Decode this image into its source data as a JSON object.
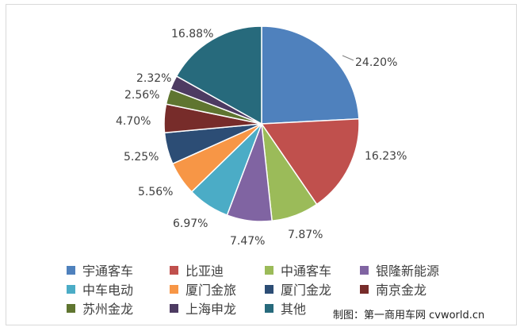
{
  "chart_data": {
    "type": "pie",
    "title": "",
    "unit": "%",
    "slices": [
      {
        "name": "宇通客车",
        "value": 24.2,
        "label": "24.20%",
        "color": "#4F81BD"
      },
      {
        "name": "比亚迪",
        "value": 16.23,
        "label": "16.23%",
        "color": "#C0504D"
      },
      {
        "name": "中通客车",
        "value": 7.87,
        "label": "7.87%",
        "color": "#9BBB59"
      },
      {
        "name": "银隆新能源",
        "value": 7.47,
        "label": "7.47%",
        "color": "#8064A2"
      },
      {
        "name": "中车电动",
        "value": 6.97,
        "label": "6.97%",
        "color": "#4BACC6"
      },
      {
        "name": "厦门金旅",
        "value": 5.56,
        "label": "5.56%",
        "color": "#F79646"
      },
      {
        "name": "厦门金龙",
        "value": 5.25,
        "label": "5.25%",
        "color": "#2C4D75"
      },
      {
        "name": "南京金龙",
        "value": 4.7,
        "label": "4.70%",
        "color": "#772C2A"
      },
      {
        "name": "苏州金龙",
        "value": 2.56,
        "label": "2.56%",
        "color": "#5F7530"
      },
      {
        "name": "上海申龙",
        "value": 2.32,
        "label": "2.32%",
        "color": "#4D3B62"
      },
      {
        "name": "其他",
        "value": 16.88,
        "label": "16.88%",
        "color": "#276A7C"
      }
    ],
    "legend_position": "bottom"
  },
  "credit": "制图：第一商用车网 cvworld.cn"
}
